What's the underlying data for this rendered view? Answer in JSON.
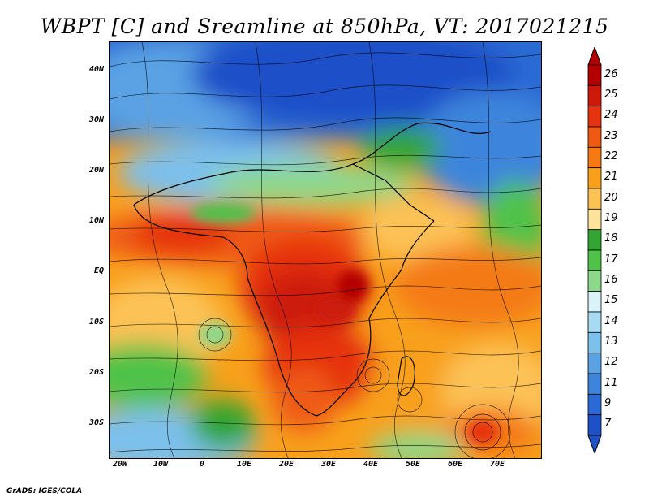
{
  "title": "WBPT [C] and Sreamline at 850hPa, VT: 2017021215",
  "lat_ticks": [
    "40N",
    "30N",
    "20N",
    "10N",
    "EQ",
    "10S",
    "20S",
    "30S"
  ],
  "lon_ticks": [
    "20W",
    "10W",
    "0",
    "10E",
    "20E",
    "30E",
    "40E",
    "50E",
    "60E",
    "70E"
  ],
  "colorbar": {
    "labels": [
      "26",
      "25",
      "24",
      "23",
      "22",
      "21",
      "20",
      "19",
      "18",
      "17",
      "16",
      "15",
      "14",
      "13",
      "12",
      "11",
      "9",
      "7"
    ],
    "colors": [
      "#b30000",
      "#cc1a0a",
      "#e6330f",
      "#ef5a12",
      "#f47a16",
      "#f8a01c",
      "#fcc256",
      "#fde49a",
      "#33a532",
      "#4fc24a",
      "#8ed88b",
      "#d9f3f8",
      "#a8dbf2",
      "#7cc0ec",
      "#5aa2e4",
      "#3d85dc",
      "#2a6ad4",
      "#1e50c8"
    ]
  },
  "footer": "GrADS: IGES/COLA"
}
